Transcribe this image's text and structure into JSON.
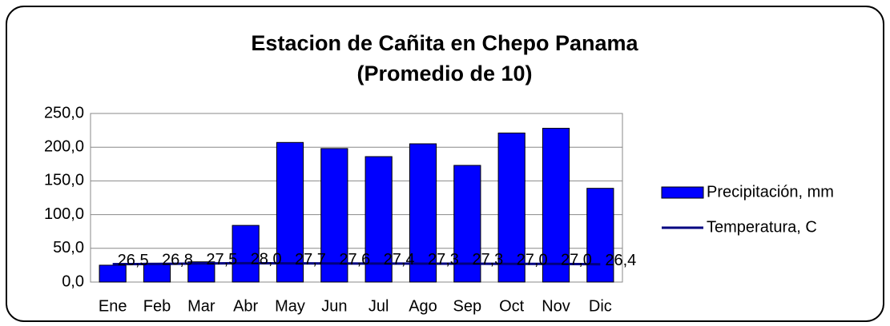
{
  "chart_data": {
    "type": "bar",
    "title": "Estacion de Cañita en Chepo Panama",
    "subtitle": "(Promedio de 10)",
    "categories": [
      "Ene",
      "Feb",
      "Mar",
      "Abr",
      "May",
      "Jun",
      "Jul",
      "Ago",
      "Sep",
      "Oct",
      "Nov",
      "Dic"
    ],
    "series": [
      {
        "name": "Precipitación, mm",
        "type": "bar",
        "color": "#0000ff",
        "values": [
          25,
          28,
          30,
          84,
          207,
          198,
          186,
          205,
          173,
          221,
          228,
          139
        ]
      },
      {
        "name": "Temperatura, C",
        "type": "line",
        "color": "#000080",
        "values": [
          26.5,
          26.8,
          27.5,
          28.0,
          27.7,
          27.6,
          27.4,
          27.3,
          27.3,
          27.0,
          27.0,
          26.4
        ],
        "value_labels": [
          "26,5",
          "26,8",
          "27,5",
          "28,0",
          "27,7",
          "27,6",
          "27,4",
          "27,3",
          "27,3",
          "27,0",
          "27,0",
          "26,4"
        ]
      }
    ],
    "ylim": [
      0,
      250
    ],
    "yticks": [
      {
        "value": 0,
        "label": "0,0"
      },
      {
        "value": 50,
        "label": "50,0"
      },
      {
        "value": 100,
        "label": "100,0"
      },
      {
        "value": 150,
        "label": "150,0"
      },
      {
        "value": 200,
        "label": "200,0"
      },
      {
        "value": 250,
        "label": "250,0"
      }
    ],
    "grid": true,
    "legend": "right"
  }
}
